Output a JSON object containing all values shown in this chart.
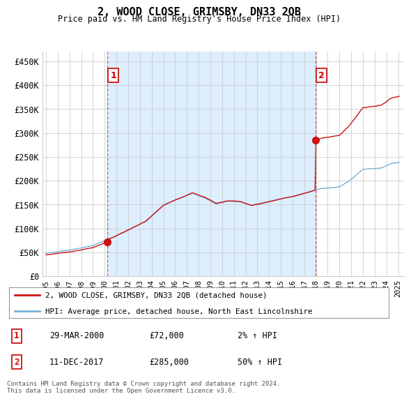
{
  "title": "2, WOOD CLOSE, GRIMSBY, DN33 2QB",
  "subtitle": "Price paid vs. HM Land Registry's House Price Index (HPI)",
  "ylabel_ticks": [
    "£0",
    "£50K",
    "£100K",
    "£150K",
    "£200K",
    "£250K",
    "£300K",
    "£350K",
    "£400K",
    "£450K"
  ],
  "ytick_values": [
    0,
    50000,
    100000,
    150000,
    200000,
    250000,
    300000,
    350000,
    400000,
    450000
  ],
  "ylim": [
    0,
    470000
  ],
  "xlim_start": 1994.7,
  "xlim_end": 2025.5,
  "xtick_years": [
    1995,
    1996,
    1997,
    1998,
    1999,
    2000,
    2001,
    2002,
    2003,
    2004,
    2005,
    2006,
    2007,
    2008,
    2009,
    2010,
    2011,
    2012,
    2013,
    2014,
    2015,
    2016,
    2017,
    2018,
    2019,
    2020,
    2021,
    2022,
    2023,
    2024,
    2025
  ],
  "hpi_color": "#7ab0d8",
  "price_color": "#cc1111",
  "vline_color": "#dd4444",
  "fill_color": "#ddeeff",
  "marker1_x": 2000.22,
  "marker1_y": 72000,
  "marker2_x": 2017.96,
  "marker2_y": 285000,
  "ann1_x": 2000.22,
  "ann2_x": 2017.96,
  "legend_line1": "2, WOOD CLOSE, GRIMSBY, DN33 2QB (detached house)",
  "legend_line2": "HPI: Average price, detached house, North East Lincolnshire",
  "table_row1": [
    "1",
    "29-MAR-2000",
    "£72,000",
    "2% ↑ HPI"
  ],
  "table_row2": [
    "2",
    "11-DEC-2017",
    "£285,000",
    "50% ↑ HPI"
  ],
  "footer": "Contains HM Land Registry data © Crown copyright and database right 2024.\nThis data is licensed under the Open Government Licence v3.0.",
  "background_color": "#ffffff",
  "grid_color": "#cccccc"
}
